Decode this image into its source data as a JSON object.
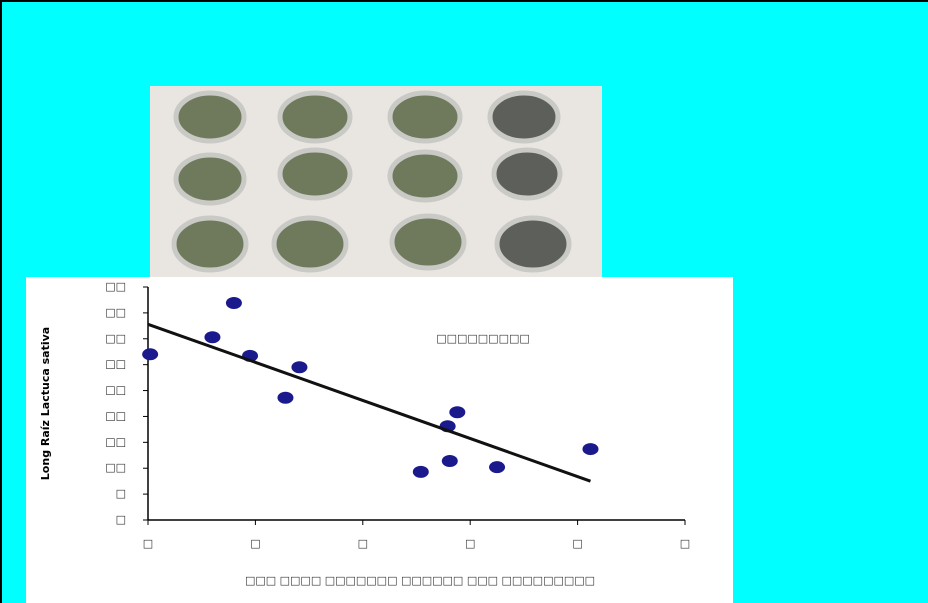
{
  "chart_data": {
    "type": "scatter",
    "ylabel": "Long Raíz Lactuca sativa",
    "xlabel": "□□□ □□□□ □□□□□□□ □□□□□□ □□□ □□□□□□□□□",
    "annotation": "□□□□□□□□□",
    "x": [
      0.02,
      0.6,
      0.8,
      0.95,
      1.28,
      1.41,
      2.54,
      2.79,
      2.81,
      2.88,
      3.25,
      4.12
    ],
    "values": [
      32.0,
      35.3,
      41.9,
      31.7,
      23.6,
      29.5,
      9.3,
      18.1,
      11.4,
      20.8,
      10.2,
      13.7
    ],
    "color": "#1a1a8c",
    "trendline": {
      "x": [
        0,
        4.12
      ],
      "y": [
        37.8,
        7.5
      ],
      "color": "#111111"
    },
    "xlim": [
      0,
      5
    ],
    "ylim": [
      0,
      45
    ],
    "xticks": [
      {
        "value": 0,
        "label": "□"
      },
      {
        "value": 1,
        "label": "□"
      },
      {
        "value": 2,
        "label": "□"
      },
      {
        "value": 3,
        "label": "□"
      },
      {
        "value": 4,
        "label": "□"
      },
      {
        "value": 5,
        "label": "□"
      }
    ],
    "yticks": [
      {
        "value": 0,
        "label": "□"
      },
      {
        "value": 5,
        "label": "□"
      },
      {
        "value": 10,
        "label": "□□"
      },
      {
        "value": 15,
        "label": "□□"
      },
      {
        "value": 20,
        "label": "□□"
      },
      {
        "value": 25,
        "label": "□□"
      },
      {
        "value": 30,
        "label": "□□"
      },
      {
        "value": 35,
        "label": "□□"
      },
      {
        "value": 40,
        "label": "□□"
      },
      {
        "value": 45,
        "label": "□□"
      }
    ]
  }
}
